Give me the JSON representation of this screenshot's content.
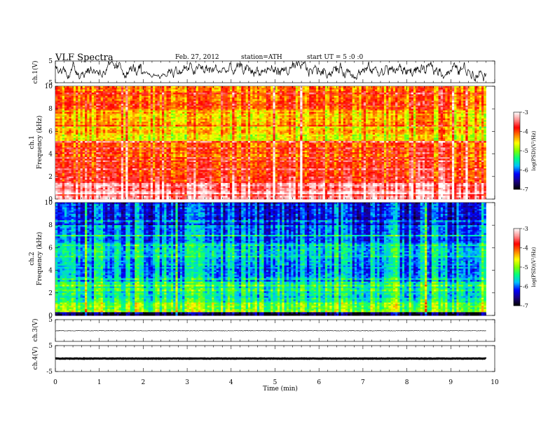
{
  "header": {
    "title": "VLF  Spectra",
    "date": "Feb. 27, 2012",
    "station": "station=ATH",
    "start": "start  UT  =    5  :0  :0"
  },
  "chart_data": {
    "type": "heatmap",
    "x": {
      "label": "Time  (min)",
      "range": [
        0,
        10
      ],
      "ticks": [
        0,
        1,
        2,
        3,
        4,
        5,
        6,
        7,
        8,
        9,
        10
      ],
      "data_end": 9.8
    },
    "panels": [
      {
        "kind": "waveform",
        "ylabel": "ch.1(V)",
        "ylim": [
          -5,
          5
        ],
        "yticks": [
          5,
          -5
        ],
        "notes": "noisy broadband signal; amplitude drop and negative offset near 2.0-2.5 min"
      },
      {
        "kind": "spectrogram",
        "ylabel_top": "ch.1",
        "ylabel": "Frequency  (kHz)",
        "ylim": [
          0,
          10
        ],
        "yticks": [
          0,
          2,
          4,
          6,
          8,
          10
        ],
        "colorbar": {
          "label": "log(PSD)(V²/Hz)",
          "range": [
            -7,
            -3
          ],
          "ticks": [
            -3,
            -4,
            -5,
            -6,
            -7
          ]
        },
        "bands_kHz": [
          {
            "from": 0,
            "to": 0.3,
            "level": -3.2
          },
          {
            "from": 0.3,
            "to": 1.5,
            "level": -3.5
          },
          {
            "from": 1.5,
            "to": 3.5,
            "level": -3.8
          },
          {
            "from": 3.5,
            "to": 5.2,
            "level": -4.0
          },
          {
            "from": 5.2,
            "to": 6.5,
            "level": -4.6
          },
          {
            "from": 6.5,
            "to": 8.0,
            "level": -4.4
          },
          {
            "from": 8.0,
            "to": 10.0,
            "level": -4.1
          }
        ]
      },
      {
        "kind": "spectrogram",
        "ylabel_top": "ch.2",
        "ylabel": "Frequency  (kHz)",
        "ylim": [
          0,
          10
        ],
        "yticks": [
          0,
          2,
          4,
          6,
          8,
          10
        ],
        "colorbar": {
          "label": "log(PSD)(V²/Hz)",
          "range": [
            -7,
            -3
          ],
          "ticks": [
            -3,
            -4,
            -5,
            -6,
            -7
          ]
        },
        "bands_kHz": [
          {
            "from": 0,
            "to": 0.3,
            "level": -6.8
          },
          {
            "from": 0.3,
            "to": 1.2,
            "level": -5.0
          },
          {
            "from": 1.2,
            "to": 3.0,
            "level": -5.5
          },
          {
            "from": 3.0,
            "to": 5.0,
            "level": -5.8
          },
          {
            "from": 5.0,
            "to": 6.5,
            "level": -5.6
          },
          {
            "from": 6.5,
            "to": 8.0,
            "level": -5.9
          },
          {
            "from": 8.0,
            "to": 10.0,
            "level": -6.2
          }
        ]
      },
      {
        "kind": "waveform",
        "ylabel": "ch.3(V)",
        "ylim": [
          -5,
          5
        ],
        "yticks": [
          5
        ],
        "notes": "near-flat trace close to 0 V"
      },
      {
        "kind": "waveform",
        "ylabel": "ch.4(V)",
        "ylim": [
          -5,
          5
        ],
        "yticks": [
          5,
          -5
        ],
        "notes": "thick flat trace at about 0 V"
      }
    ]
  },
  "colors": {
    "colormap": [
      "#000000",
      "#1a0080",
      "#0000ff",
      "#00c0ff",
      "#00ff80",
      "#80ff00",
      "#ffff00",
      "#ff8000",
      "#ff0000",
      "#ff9090",
      "#ffffff"
    ]
  }
}
